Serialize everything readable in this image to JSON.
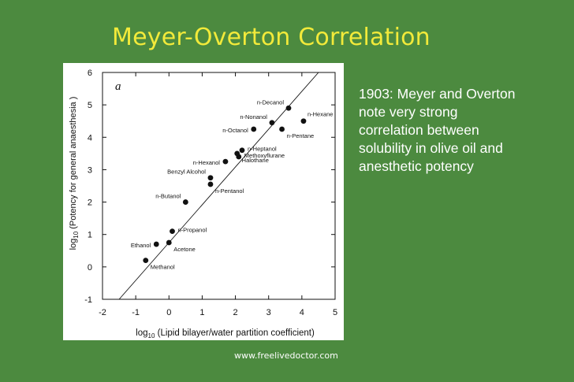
{
  "slide": {
    "title": "Meyer-Overton Correlation",
    "description_lines": [
      "1903: Meyer and Overton",
      "note very strong",
      "correlation between",
      "solubility in olive oil and",
      "anesthetic potency"
    ],
    "footer": "www.freelivedoctor.com"
  },
  "colors": {
    "background": "#4c8a3f",
    "title": "#f2ea3a",
    "text": "#ffffff",
    "plot_ink": "#111111"
  },
  "chart_data": {
    "type": "scatter",
    "panel_label": "a",
    "xlabel_prefix": "log",
    "xlabel_sub": "10",
    "xlabel_rest": " (Lipid bilayer/water partition coefficient)",
    "ylabel_prefix": "log",
    "ylabel_sub": "10",
    "ylabel_rest": " (Potency for general anaesthesia )",
    "xlim": [
      -2,
      5
    ],
    "ylim": [
      -1,
      6
    ],
    "xticks": [
      -2,
      -1,
      0,
      1,
      2,
      3,
      4,
      5
    ],
    "yticks": [
      -1,
      0,
      1,
      2,
      3,
      4,
      5,
      6
    ],
    "trend_line": {
      "x": [
        -1.5,
        4.5
      ],
      "y": [
        -1,
        6
      ]
    },
    "points": [
      {
        "name": "Methanol",
        "x": -0.7,
        "y": 0.2,
        "label_pos": "below-right"
      },
      {
        "name": "Ethanol",
        "x": -0.38,
        "y": 0.7,
        "label_pos": "left"
      },
      {
        "name": "Acetone",
        "x": 0.0,
        "y": 0.75,
        "label_pos": "below-right"
      },
      {
        "name": "n-Propanol",
        "x": 0.1,
        "y": 1.1,
        "label_pos": "right"
      },
      {
        "name": "n-Butanol",
        "x": 0.5,
        "y": 2.0,
        "label_pos": "upper-left"
      },
      {
        "name": "n-Pentanol",
        "x": 1.25,
        "y": 2.55,
        "label_pos": "below-right"
      },
      {
        "name": "Benzyl Alcohol",
        "x": 1.25,
        "y": 2.75,
        "label_pos": "upper-left"
      },
      {
        "name": "n-Hexanol",
        "x": 1.7,
        "y": 3.25,
        "label_pos": "left"
      },
      {
        "name": "Methoxyflurane",
        "x": 2.1,
        "y": 3.4,
        "label_pos": "right"
      },
      {
        "name": "Halothane",
        "x": 2.05,
        "y": 3.5,
        "label_pos": "below-right"
      },
      {
        "name": "n-Heptanol",
        "x": 2.2,
        "y": 3.6,
        "label_pos": "right"
      },
      {
        "name": "n-Octanol",
        "x": 2.55,
        "y": 4.25,
        "label_pos": "left"
      },
      {
        "name": "n-Nonanol",
        "x": 3.1,
        "y": 4.45,
        "label_pos": "upper-left"
      },
      {
        "name": "n-Pentane",
        "x": 3.4,
        "y": 4.25,
        "label_pos": "below-right"
      },
      {
        "name": "n-Decanol",
        "x": 3.6,
        "y": 4.9,
        "label_pos": "upper-left"
      },
      {
        "name": "n-Hexane",
        "x": 4.05,
        "y": 4.5,
        "label_pos": "upper-right"
      }
    ]
  }
}
